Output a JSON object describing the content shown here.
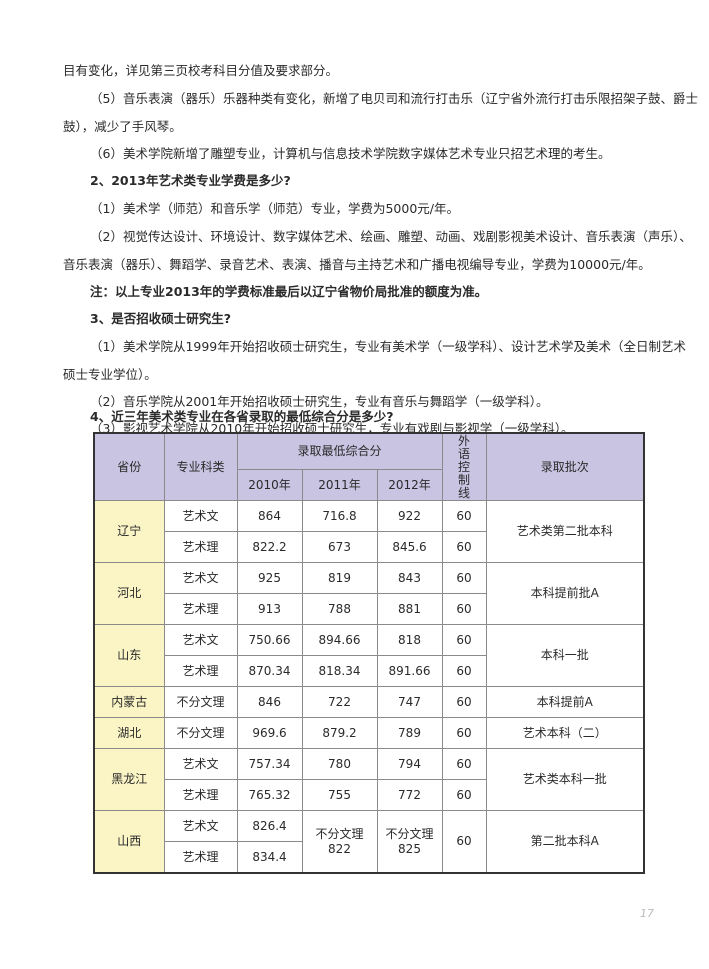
{
  "paragraphs": [
    "目有变化，详见第三页校考科目分值及要求部分。",
    "（5）音乐表演（器乐）乐器种类有变化，新增了电贝司和流行打击乐（辽宁省外流行打击乐限招架子鼓、爵士",
    "鼓），减少了手风琴。",
    "（6）美术学院新增了雕塑专业，计算机与信息技术学院数字媒体艺术专业只招艺术理的考生。",
    "2、2013年艺术类专业学费是多少?",
    "（1）美术学（师范）和音乐学（师范）专业，学费为5000元/年。",
    "（2）视觉传达设计、环境设计、数字媒体艺术、绘画、雕塑、动画、戏剧影视美术设计、音乐表演（声乐）、",
    "音乐表演（器乐）、舞蹈学、录音艺术、表演、播音与主持艺术和广播电视编导专业，学费为10000元/年。",
    "注：以上专业2013年的学费标准最后以辽宁省物价局批准的额度为准。",
    "3、是否招收硕士研究生?",
    "（1）美术学院从1999年开始招收硕士研究生，专业有美术学（一级学科）、设计艺术学及美术（全日制艺术",
    "硕士专业学位）。",
    "（2）音乐学院从2001年开始招收硕士研究生，专业有音乐与舞蹈学（一级学科）。",
    "（3）影视艺术学院从2010年开始招收硕士研究生，专业有戏剧与影视学（一级学科）。",
    "4、近三年美术类专业在各省录取的最低综合分是多少?"
  ],
  "table": {
    "headers": {
      "province": "省份",
      "category": "专业科类",
      "min_score": "录取最低综合分",
      "y2010": "2010年",
      "y2011": "2011年",
      "y2012": "2012年",
      "foreign": "外\n语\n控\n制\n线",
      "batch": "录取批次"
    },
    "colors": {
      "header": "#c9c4e2",
      "province": "#fbf5c6"
    },
    "rows": [
      {
        "province": "辽宁",
        "batch": "艺术类第二批本科",
        "lines": [
          [
            "艺术文",
            "864",
            "716.8",
            "922",
            "60"
          ],
          [
            "艺术理",
            "822.2",
            "673",
            "845.6",
            "60"
          ]
        ]
      },
      {
        "province": "河北",
        "batch": "本科提前批A",
        "lines": [
          [
            "艺术文",
            "925",
            "819",
            "843",
            "60"
          ],
          [
            "艺术理",
            "913",
            "788",
            "881",
            "60"
          ]
        ]
      },
      {
        "province": "山东",
        "batch": "本科一批",
        "lines": [
          [
            "艺术文",
            "750.66",
            "894.66",
            "818",
            "60"
          ],
          [
            "艺术理",
            "870.34",
            "818.34",
            "891.66",
            "60"
          ]
        ]
      },
      {
        "province": "内蒙古",
        "batch": "本科提前A",
        "lines": [
          [
            "不分文理",
            "846",
            "722",
            "747",
            "60"
          ]
        ]
      },
      {
        "province": "湖北",
        "batch": "艺术本科（二）",
        "lines": [
          [
            "不分文理",
            "969.6",
            "879.2",
            "789",
            "60"
          ]
        ]
      },
      {
        "province": "黑龙江",
        "batch": "艺术类本科一批",
        "lines": [
          [
            "艺术文",
            "757.34",
            "780",
            "794",
            "60"
          ],
          [
            "艺术理",
            "765.32",
            "755",
            "772",
            "60"
          ]
        ]
      },
      {
        "province": "山西",
        "batch": "第二批本科A",
        "lines": [
          [
            "艺术文",
            "826.4"
          ],
          [
            "艺术理",
            "834.4"
          ]
        ],
        "merged_2011": "不分文理 822",
        "merged_2012": "不分文理 825",
        "foreign": "60"
      }
    ]
  },
  "page_number": "17"
}
